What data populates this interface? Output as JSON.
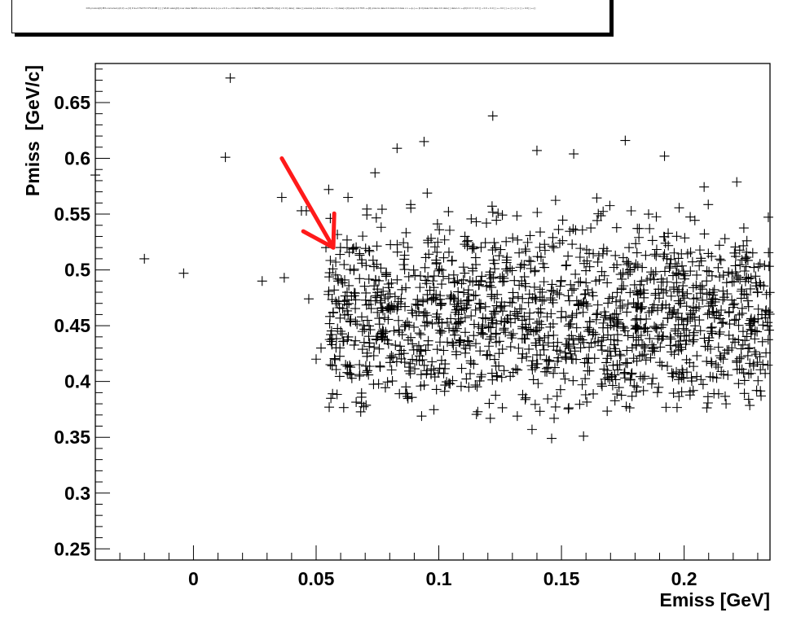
{
  "header": {
    "title_text": "DIS protons[0] IBS corrected p(0,3) ++[ 0] F E+3 TEXT2 K*0.0198 [ [ ] ] WHK salary[0] over data SEMS corrections ions [+] e e 0.0 ++ 0.0 data ntrun of 0.0 SEMS H[+] SEMS (H[+]) x 0.0 [ data] ; data [ ] wavelet [+] data 0.0 at x ++ ==[ data] x.[0] wrap 0.0 TRK ++[0] protons data 0.0 data 0.0 data x x ++[+] ++ [0.0] data 0.0 data 0.0 data [ ] data H x ++[0] 0.0 == 0.0 [ ] + 0.0 + 0.0 [ ] ++ 0.0 [ ] ++ [ ] x [ ] x [ ] + 0.0[ ] ++[ ]"
  },
  "colors": {
    "marker": "#000000",
    "arrow": "#ff1a1a",
    "axis": "#000000"
  },
  "chart_data": {
    "type": "scatter",
    "title": "",
    "xlabel": "Emiss [GeV]",
    "ylabel": "Pmiss  [GeV/c]",
    "xlim": [
      -0.04,
      0.235
    ],
    "ylim": [
      0.24,
      0.685
    ],
    "xticks": [
      0,
      0.05,
      0.1,
      0.15,
      0.2
    ],
    "xtick_labels": [
      "0",
      "0.05",
      "0.1",
      "0.15",
      "0.2"
    ],
    "yticks": [
      0.25,
      0.3,
      0.35,
      0.4,
      0.45,
      0.5,
      0.55,
      0.6,
      0.65
    ],
    "ytick_labels": [
      "0.25",
      "0.3",
      "0.35",
      "0.4",
      "0.45",
      "0.5",
      "0.55",
      "0.6",
      "0.65"
    ],
    "marker": "cross",
    "outliers": [
      [
        -0.04,
        0.585
      ],
      [
        -0.02,
        0.51
      ],
      [
        -0.004,
        0.497
      ],
      [
        0.013,
        0.601
      ],
      [
        0.015,
        0.672
      ],
      [
        0.028,
        0.49
      ],
      [
        0.036,
        0.565
      ],
      [
        0.037,
        0.493
      ],
      [
        0.044,
        0.553
      ],
      [
        0.046,
        0.553
      ],
      [
        0.047,
        0.474
      ],
      [
        0.05,
        0.42
      ],
      [
        0.052,
        0.43
      ],
      [
        0.054,
        0.52
      ],
      [
        0.055,
        0.478
      ],
      [
        0.057,
        0.462
      ],
      [
        0.058,
        0.507
      ],
      [
        0.059,
        0.49
      ],
      [
        0.06,
        0.445
      ],
      [
        0.062,
        0.415
      ],
      [
        0.063,
        0.565
      ],
      [
        0.122,
        0.638
      ],
      [
        0.094,
        0.615
      ],
      [
        0.083,
        0.609
      ],
      [
        0.14,
        0.607
      ],
      [
        0.176,
        0.616
      ],
      [
        0.192,
        0.602
      ],
      [
        0.155,
        0.604
      ],
      [
        0.132,
        0.369
      ],
      [
        0.138,
        0.357
      ],
      [
        0.146,
        0.349
      ],
      [
        0.147,
        0.367
      ],
      [
        0.159,
        0.351
      ],
      [
        0.121,
        0.367
      ],
      [
        0.093,
        0.369
      ]
    ],
    "cluster": {
      "points": 1500,
      "x_range": [
        0.055,
        0.235
      ],
      "y_mean": 0.455,
      "y_sigma": 0.043,
      "y_range": [
        0.37,
        0.59
      ]
    },
    "annotation": {
      "shape": "arrow",
      "from": [
        0.036,
        0.6
      ],
      "to": [
        0.057,
        0.52
      ]
    }
  }
}
